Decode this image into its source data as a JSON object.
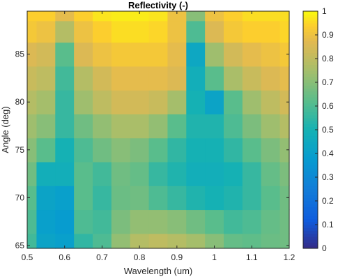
{
  "chart_data": {
    "type": "heatmap",
    "title": "Reflectivity (-)",
    "xlabel": "Wavelength (um)",
    "ylabel": "Angle (deg)",
    "xlim": [
      0.5,
      1.2
    ],
    "ylim": [
      64.7,
      89.5
    ],
    "x_ticks": [
      {
        "value": 0.5,
        "label": "0.5"
      },
      {
        "value": 0.6,
        "label": "0.6"
      },
      {
        "value": 0.7,
        "label": "0.7"
      },
      {
        "value": 0.8,
        "label": "0.8"
      },
      {
        "value": 0.9,
        "label": "0.9"
      },
      {
        "value": 1.0,
        "label": "1"
      },
      {
        "value": 1.1,
        "label": "1.1"
      },
      {
        "value": 1.2,
        "label": "1.2"
      }
    ],
    "y_ticks": [
      {
        "value": 65,
        "label": "65"
      },
      {
        "value": 70,
        "label": "70"
      },
      {
        "value": 75,
        "label": "75"
      },
      {
        "value": 80,
        "label": "80"
      },
      {
        "value": 85,
        "label": "85"
      }
    ],
    "colorbar": {
      "min": 0,
      "max": 1,
      "colormap": "parula",
      "ticks": [
        {
          "value": 0,
          "label": "0"
        },
        {
          "value": 0.1,
          "label": "0.1"
        },
        {
          "value": 0.2,
          "label": "0.2"
        },
        {
          "value": 0.3,
          "label": "0.3"
        },
        {
          "value": 0.4,
          "label": "0.4"
        },
        {
          "value": 0.5,
          "label": "0.5"
        },
        {
          "value": 0.6,
          "label": "0.6"
        },
        {
          "value": 0.7,
          "label": "0.7"
        },
        {
          "value": 0.8,
          "label": "0.8"
        },
        {
          "value": 0.9,
          "label": "0.9"
        },
        {
          "value": 1,
          "label": "1"
        }
      ]
    },
    "x": [
      0.5,
      0.55,
      0.6,
      0.65,
      0.7,
      0.75,
      0.8,
      0.85,
      0.9,
      0.95,
      1.0,
      1.05,
      1.1,
      1.15,
      1.2
    ],
    "y": [
      65,
      67.5,
      70,
      72.5,
      75,
      77.5,
      80,
      82.5,
      85,
      87.5,
      89.5
    ],
    "z": [
      [
        0.58,
        0.42,
        0.4,
        0.55,
        0.6,
        0.72,
        0.78,
        0.8,
        0.78,
        0.75,
        0.7,
        0.64,
        0.63,
        0.65,
        0.66
      ],
      [
        0.6,
        0.4,
        0.38,
        0.6,
        0.58,
        0.68,
        0.72,
        0.72,
        0.7,
        0.66,
        0.62,
        0.58,
        0.6,
        0.64,
        0.66
      ],
      [
        0.62,
        0.42,
        0.4,
        0.62,
        0.56,
        0.65,
        0.66,
        0.6,
        0.56,
        0.52,
        0.5,
        0.52,
        0.56,
        0.62,
        0.66
      ],
      [
        0.66,
        0.48,
        0.48,
        0.62,
        0.58,
        0.66,
        0.64,
        0.56,
        0.52,
        0.48,
        0.48,
        0.5,
        0.56,
        0.64,
        0.68
      ],
      [
        0.7,
        0.62,
        0.5,
        0.6,
        0.66,
        0.7,
        0.68,
        0.62,
        0.55,
        0.5,
        0.5,
        0.55,
        0.62,
        0.68,
        0.72
      ],
      [
        0.74,
        0.7,
        0.56,
        0.66,
        0.72,
        0.76,
        0.76,
        0.72,
        0.62,
        0.52,
        0.52,
        0.6,
        0.68,
        0.74,
        0.78
      ],
      [
        0.78,
        0.75,
        0.56,
        0.74,
        0.8,
        0.84,
        0.84,
        0.82,
        0.75,
        0.5,
        0.42,
        0.62,
        0.74,
        0.8,
        0.84
      ],
      [
        0.82,
        0.8,
        0.58,
        0.78,
        0.84,
        0.88,
        0.88,
        0.88,
        0.86,
        0.48,
        0.62,
        0.76,
        0.82,
        0.86,
        0.88
      ],
      [
        0.86,
        0.84,
        0.62,
        0.86,
        0.9,
        0.92,
        0.92,
        0.92,
        0.88,
        0.44,
        0.74,
        0.84,
        0.88,
        0.9,
        0.92
      ],
      [
        0.92,
        0.9,
        0.78,
        0.9,
        0.94,
        0.96,
        0.96,
        0.95,
        0.9,
        0.6,
        0.86,
        0.92,
        0.94,
        0.94,
        0.95
      ],
      [
        0.94,
        0.94,
        0.88,
        0.94,
        0.97,
        0.98,
        0.98,
        0.97,
        0.9,
        0.7,
        0.9,
        0.94,
        0.96,
        0.96,
        0.96
      ]
    ]
  }
}
